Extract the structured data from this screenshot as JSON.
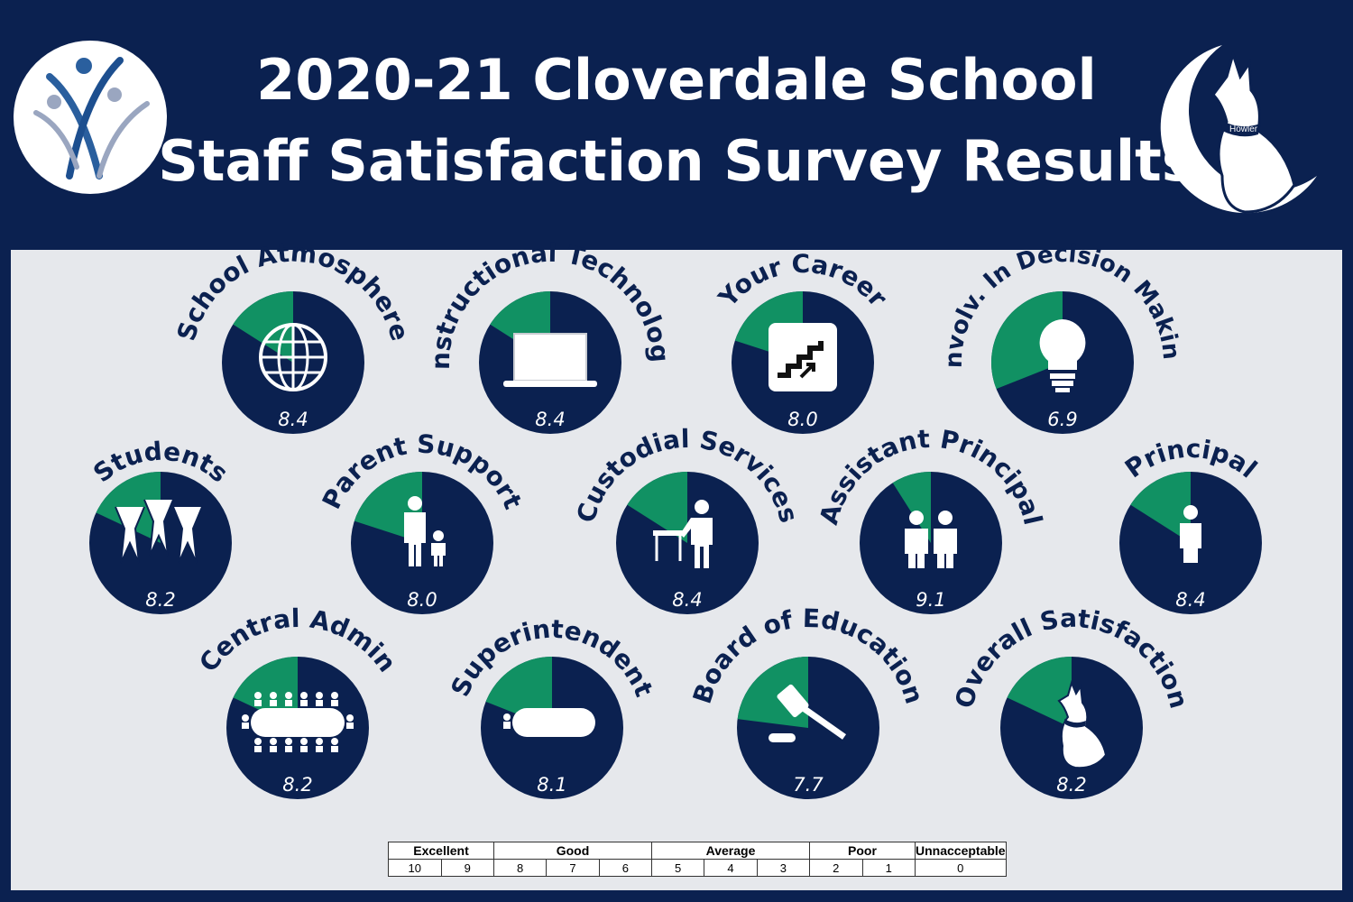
{
  "header": {
    "title_line1": "2020-21 Cloverdale School",
    "title_line2": "Staff Satisfaction Survey Results",
    "mascot_text": "Howler"
  },
  "colors": {
    "navy": "#0b2150",
    "green": "#119163",
    "panel": "#e6e8ec",
    "white": "#ffffff"
  },
  "chart_data": {
    "type": "pie",
    "scale_max": 10,
    "items": [
      {
        "label": "School Atmosphere",
        "value": 8.4,
        "icon": "globe-icon"
      },
      {
        "label": "Instructional Technology",
        "value": 8.4,
        "icon": "laptop-icon"
      },
      {
        "label": "Your Career",
        "value": 8.0,
        "icon": "career-stairs-icon"
      },
      {
        "label": "Involv. In Decision Making",
        "value": 6.9,
        "icon": "lightbulb-icon"
      },
      {
        "label": "Students",
        "value": 8.2,
        "icon": "students-icon"
      },
      {
        "label": "Parent Support",
        "value": 8.0,
        "icon": "parent-child-icon"
      },
      {
        "label": "Custodial Services",
        "value": 8.4,
        "icon": "custodian-icon"
      },
      {
        "label": "Assistant Principal",
        "value": 9.1,
        "icon": "two-people-icon"
      },
      {
        "label": "Principal",
        "value": 8.4,
        "icon": "person-icon"
      },
      {
        "label": "Central Admin",
        "value": 8.2,
        "icon": "conference-table-icon"
      },
      {
        "label": "Superintendent",
        "value": 8.1,
        "icon": "desk-icon"
      },
      {
        "label": "Board of Education",
        "value": 7.7,
        "icon": "gavel-icon"
      },
      {
        "label": "Overall Satisfaction",
        "value": 8.2,
        "icon": "wolf-mascot-icon"
      }
    ]
  },
  "scale": {
    "ratings": [
      {
        "label": "Excellent",
        "span": 2
      },
      {
        "label": "Good",
        "span": 3
      },
      {
        "label": "Average",
        "span": 3
      },
      {
        "label": "Poor",
        "span": 2
      },
      {
        "label": "Unnacceptable",
        "span": 1
      }
    ],
    "numbers": [
      "10",
      "9",
      "8",
      "7",
      "6",
      "5",
      "4",
      "3",
      "2",
      "1",
      "0"
    ]
  }
}
